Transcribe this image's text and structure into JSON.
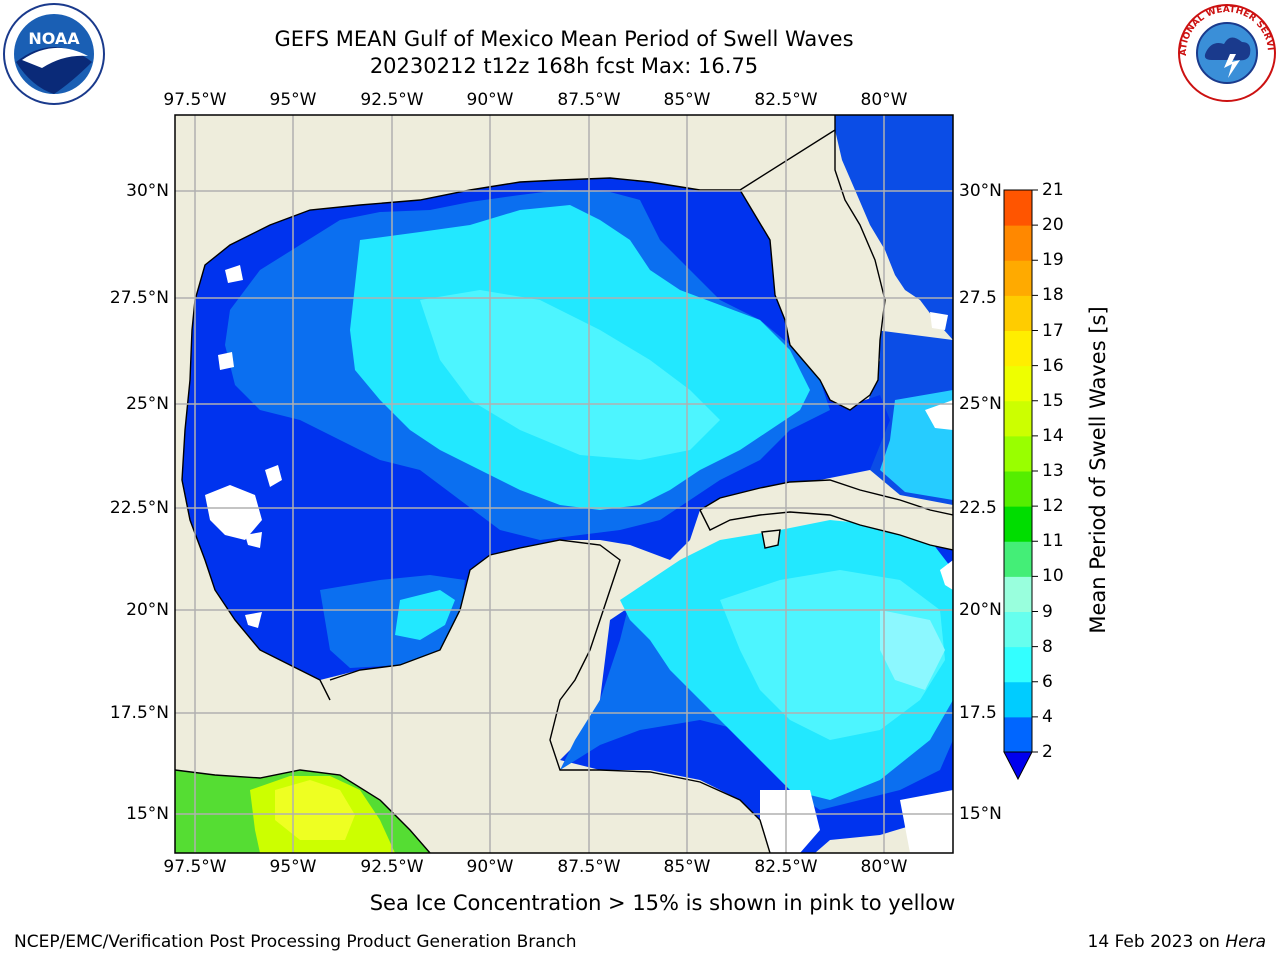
{
  "header": {
    "title_line1": "GEFS MEAN Gulf of Mexico Mean Period of Swell Waves",
    "title_line2": "20230212 t12z 168h fcst   Max: 16.75"
  },
  "map": {
    "lon_labels": [
      "97.5°W",
      "95°W",
      "92.5°W",
      "90°W",
      "87.5°W",
      "85°W",
      "82.5°W",
      "80°W"
    ],
    "lat_labels": [
      "30°N",
      "27.5°N",
      "25°N",
      "22.5°N",
      "20°N",
      "17.5°N",
      "15°N"
    ],
    "lat_labels_right": [
      "30°N",
      "27.5",
      "25°N",
      "22.5",
      "20°N",
      "17.5",
      "15°N"
    ],
    "colors": {
      "land": "#eeeddc",
      "grid": "#b0b0b0",
      "coast": "#000000"
    }
  },
  "colorbar": {
    "title": "Mean Period of Swell Waves [s]",
    "ticks": [
      "2",
      "4",
      "6",
      "8",
      "9",
      "10",
      "11",
      "12",
      "13",
      "14",
      "15",
      "16",
      "17",
      "18",
      "19",
      "20",
      "21"
    ],
    "colors": [
      "#0066ff",
      "#00ccff",
      "#33ffff",
      "#66ffee",
      "#99ffdd",
      "#44ee77",
      "#00dd00",
      "#55ee00",
      "#99ff00",
      "#ccff00",
      "#eeff00",
      "#ffee00",
      "#ffcc00",
      "#ffaa00",
      "#ff8800",
      "#ff5500",
      "#ff2200",
      "#ff0000"
    ],
    "under_color": "#0000ee"
  },
  "footer": {
    "note": "Sea Ice Concentration > 15% is shown in pink to yellow",
    "left": "NCEP/EMC/Verification Post Processing Product Generation Branch",
    "right_date": "14 Feb 2023 on ",
    "right_host": "Hera"
  },
  "logos": {
    "noaa_text": "NOAA",
    "nws_text": "NATIONAL WEATHER SERVICE"
  }
}
